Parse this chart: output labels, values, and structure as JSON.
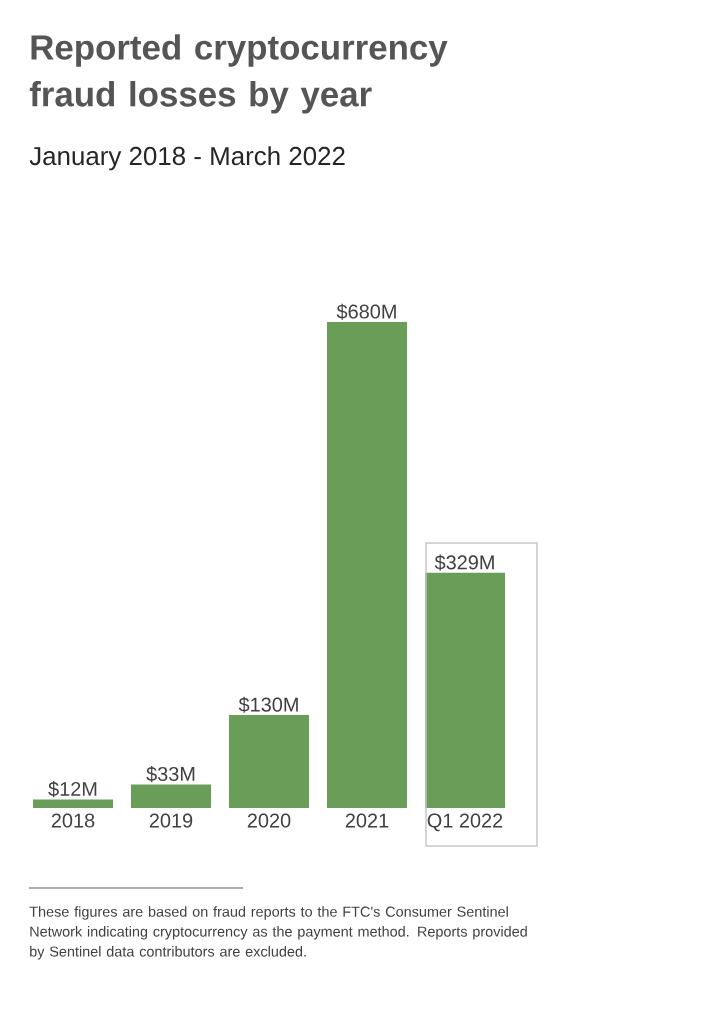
{
  "chart_data": {
    "type": "bar",
    "title": "Reported cryptocurrency fraud losses by year",
    "subtitle": "January 2018 - March 2022",
    "categories": [
      "2018",
      "2019",
      "2020",
      "2021",
      "Q1 2022"
    ],
    "values": [
      12,
      33,
      130,
      680,
      329
    ],
    "value_labels": [
      "$12M",
      "$33M",
      "$130M",
      "$680M",
      "$329M"
    ],
    "color": "#6a9e58",
    "annotations": [
      "These figures are based on fraud reports to the FTC's Consumer Sentinel Network indicating cryptocurrency as the payment method. Reports provided by Sentinel data contributors are excluded."
    ]
  }
}
